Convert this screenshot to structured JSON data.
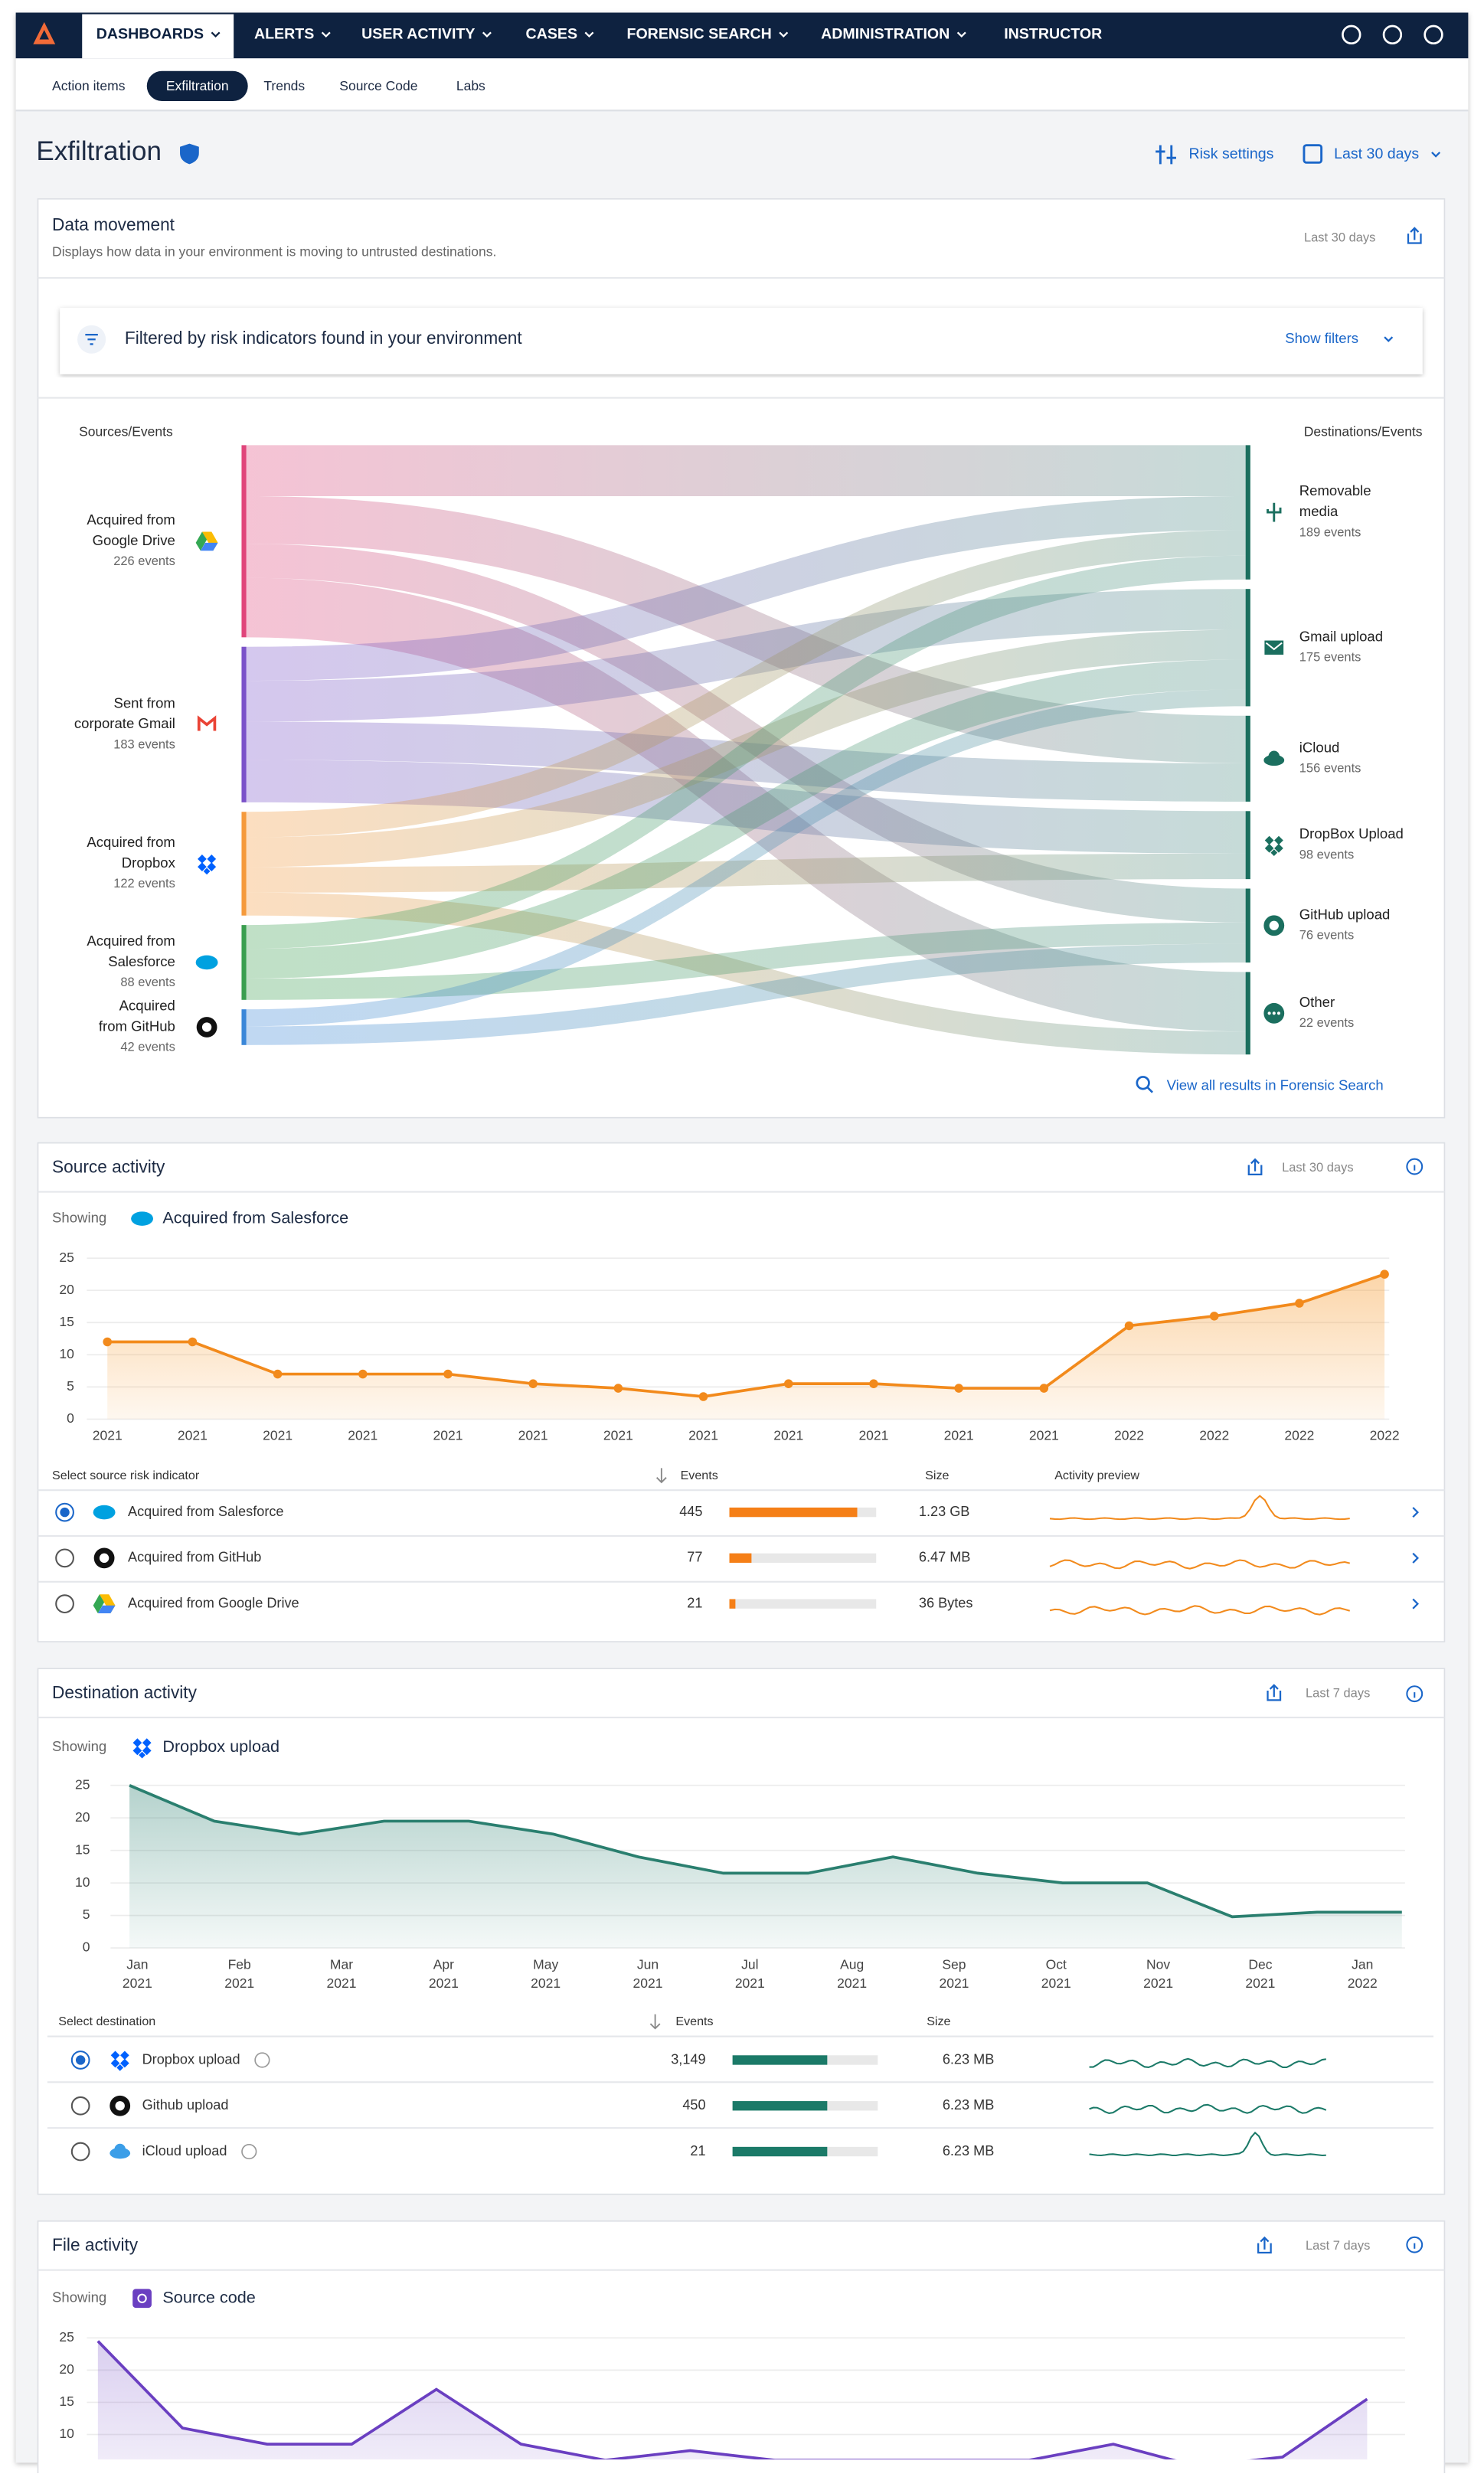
{
  "nav": {
    "items": [
      "DASHBOARDS",
      "ALERTS",
      "USER ACTIVITY",
      "CASES",
      "FORENSIC SEARCH",
      "ADMINISTRATION",
      "INSTRUCTOR"
    ]
  },
  "tabs": [
    "Action items",
    "Exfiltration",
    "Trends",
    "Source Code",
    "Labs"
  ],
  "page": {
    "title": "Exfiltration",
    "risk_settings": "Risk settings",
    "range": "Last 30 days"
  },
  "data_movement": {
    "title": "Data movement",
    "subtitle": "Displays how data in your environment is moving to untrusted destinations.",
    "range": "Last 30 days",
    "filter": "Filtered by risk indicators found in your environment",
    "show_filters": "Show filters",
    "link": "View all results in Forensic Search",
    "chart_data": {
      "type": "sankey",
      "sources_heading": "Sources/Events",
      "destinations_heading": "Destinations/Events",
      "sources": [
        {
          "name": [
            "Acquired from",
            "Google Drive"
          ],
          "events": "226 events",
          "color": "#e0457b"
        },
        {
          "name": [
            "Sent from",
            "corporate Gmail"
          ],
          "events": "183 events",
          "color": "#7b52c9"
        },
        {
          "name": [
            "Acquired from",
            "Dropbox"
          ],
          "events": "122 events",
          "color": "#f59a3c"
        },
        {
          "name": [
            "Acquired from",
            "Salesforce"
          ],
          "events": "88 events",
          "color": "#3a9e4f"
        },
        {
          "name": [
            "Acquired",
            "from GitHub"
          ],
          "events": "42 events",
          "color": "#3b87d8"
        }
      ],
      "destinations": [
        {
          "name": [
            "Removable",
            "media"
          ],
          "events": "189 events"
        },
        {
          "name": [
            "Gmail upload"
          ],
          "events": "175 events"
        },
        {
          "name": [
            "iCloud"
          ],
          "events": "156 events"
        },
        {
          "name": [
            "DropBox Upload"
          ],
          "events": "98 events"
        },
        {
          "name": [
            "GitHub upload"
          ],
          "events": "76 events"
        },
        {
          "name": [
            "Other"
          ],
          "events": "22 events"
        }
      ],
      "destination_color": "#1b6f5f",
      "links": [
        {
          "source": 0,
          "target": 0,
          "value": 60
        },
        {
          "source": 0,
          "target": 2,
          "value": 56
        },
        {
          "source": 0,
          "target": 4,
          "value": 40
        },
        {
          "source": 0,
          "target": 5,
          "value": 70
        },
        {
          "source": 1,
          "target": 0,
          "value": 40
        },
        {
          "source": 1,
          "target": 1,
          "value": 48
        },
        {
          "source": 1,
          "target": 2,
          "value": 45
        },
        {
          "source": 1,
          "target": 3,
          "value": 50
        },
        {
          "source": 2,
          "target": 0,
          "value": 30
        },
        {
          "source": 2,
          "target": 1,
          "value": 35
        },
        {
          "source": 2,
          "target": 3,
          "value": 30
        },
        {
          "source": 2,
          "target": 5,
          "value": 27
        },
        {
          "source": 3,
          "target": 0,
          "value": 28
        },
        {
          "source": 3,
          "target": 1,
          "value": 35
        },
        {
          "source": 3,
          "target": 4,
          "value": 25
        },
        {
          "source": 4,
          "target": 1,
          "value": 20
        },
        {
          "source": 4,
          "target": 4,
          "value": 22
        }
      ]
    }
  },
  "source_activity": {
    "title": "Source activity",
    "range": "Last 30 days",
    "showing_label": "Showing",
    "showing": "Acquired from Salesforce",
    "chart_data": {
      "type": "line",
      "color": "#f28a1c",
      "markers": true,
      "categories": [
        "2021",
        "2021",
        "2021",
        "2021",
        "2021",
        "2021",
        "2021",
        "2021",
        "2021",
        "2021",
        "2021",
        "2021",
        "2022",
        "2022",
        "2022",
        "2022"
      ],
      "values": [
        12,
        12,
        7,
        7,
        7,
        5.5,
        4.8,
        3.5,
        5.5,
        5.5,
        4.8,
        4.8,
        14.5,
        16,
        18,
        22.5
      ],
      "ylim": [
        0,
        25
      ],
      "yticks": [
        0,
        5,
        10,
        15,
        20,
        25
      ],
      "grid": true
    },
    "table": {
      "headers": [
        "Select source risk indicator",
        "Events",
        "Size",
        "Activity preview"
      ],
      "rows": [
        {
          "name": "Acquired from Salesforce",
          "events": 445,
          "size": "1.23 GB",
          "selected": true
        },
        {
          "name": "Acquired from GitHub",
          "events": 77,
          "size": "6.47 MB",
          "selected": false
        },
        {
          "name": "Acquired from Google Drive",
          "events": 21,
          "size": "36 Bytes",
          "selected": false
        }
      ]
    }
  },
  "destination_activity": {
    "title": "Destination activity",
    "range": "Last 7 days",
    "showing_label": "Showing",
    "showing": "Dropbox upload",
    "chart_data": {
      "type": "line",
      "color": "#2a7f6f",
      "markers": false,
      "values": [
        25,
        19.5,
        17.5,
        19.5,
        19.5,
        17.5,
        14,
        11.5,
        11.5,
        14,
        11.5,
        10,
        10,
        4.8,
        5.5,
        5.5
      ],
      "xtick_labels": [
        [
          "Jan",
          "2021"
        ],
        [
          "Feb",
          "2021"
        ],
        [
          "Mar",
          "2021"
        ],
        [
          "Apr",
          "2021"
        ],
        [
          "May",
          "2021"
        ],
        [
          "Jun",
          "2021"
        ],
        [
          "Jul",
          "2021"
        ],
        [
          "Aug",
          "2021"
        ],
        [
          "Sep",
          "2021"
        ],
        [
          "Oct",
          "2021"
        ],
        [
          "Nov",
          "2021"
        ],
        [
          "Dec",
          "2021"
        ],
        [
          "Jan",
          "2022"
        ]
      ],
      "ylim": [
        0,
        25
      ],
      "yticks": [
        0,
        5,
        10,
        15,
        20,
        25
      ],
      "grid": true
    },
    "table": {
      "headers": [
        "Select destination",
        "Events",
        "Size"
      ],
      "rows": [
        {
          "name": "Dropbox upload",
          "events": "3,149",
          "size": "6.23 MB",
          "selected": true
        },
        {
          "name": "Github upload",
          "events": "450",
          "size": "6.23 MB",
          "selected": false
        },
        {
          "name": "iCloud upload",
          "events": "21",
          "size": "6.23 MB",
          "selected": false
        }
      ]
    }
  },
  "file_activity": {
    "title": "File activity",
    "range": "Last 7 days",
    "showing_label": "Showing",
    "showing": "Source code",
    "chart_data": {
      "type": "line",
      "color": "#6a3fc1",
      "markers": false,
      "values": [
        24.5,
        11,
        8.5,
        8.5,
        17,
        8.5,
        6,
        7.5,
        6,
        6,
        6,
        6,
        8.5,
        5,
        6.5,
        15.5
      ],
      "ylim": [
        0,
        25
      ],
      "yticks": [
        10,
        15,
        20,
        25
      ],
      "grid": true
    }
  }
}
